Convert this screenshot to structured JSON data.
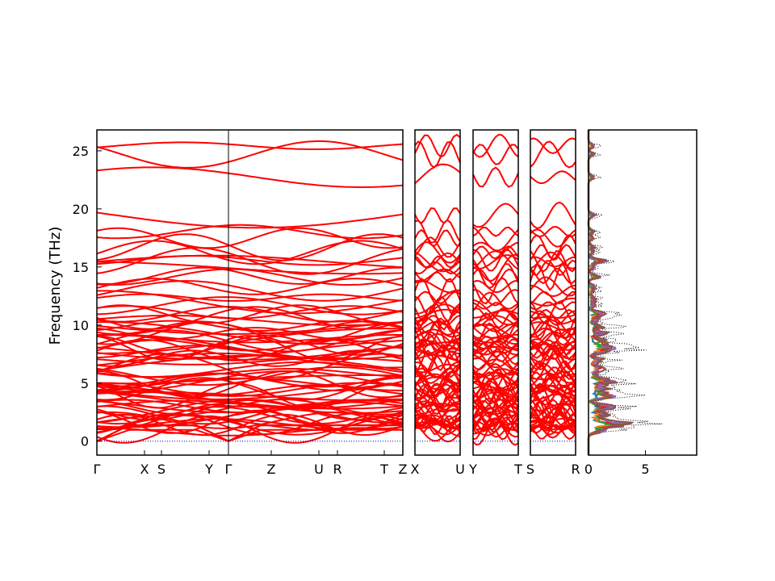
{
  "chart_data": {
    "type": "line",
    "title": "",
    "ylabel": "Frequency (THz)",
    "ylim": [
      -1.2,
      26.8
    ],
    "yticks": [
      "0",
      "5",
      "10",
      "15",
      "20",
      "25"
    ],
    "grid": false,
    "colors": {
      "bands": "#ff0000",
      "zero_line": "#0000cc",
      "dos_total": "#000000"
    },
    "panels": [
      {
        "id": "p1",
        "xticks": [
          "Γ",
          "X",
          "S",
          "Y",
          "Γ",
          "Z",
          "U",
          "R",
          "T",
          "Z"
        ]
      },
      {
        "id": "p2",
        "xticks": [
          "X",
          "U"
        ]
      },
      {
        "id": "p3",
        "xticks": [
          "Y",
          "T"
        ]
      },
      {
        "id": "p4",
        "xticks": [
          "S",
          "R"
        ]
      }
    ],
    "dos_panel": {
      "xticks": [
        "0",
        "5"
      ],
      "xlim": [
        0,
        9.5
      ],
      "projected_colors": [
        "#1f77b4",
        "#ff7f0e",
        "#2ca02c",
        "#d62728",
        "#9467bd",
        "#8c564b"
      ]
    }
  }
}
